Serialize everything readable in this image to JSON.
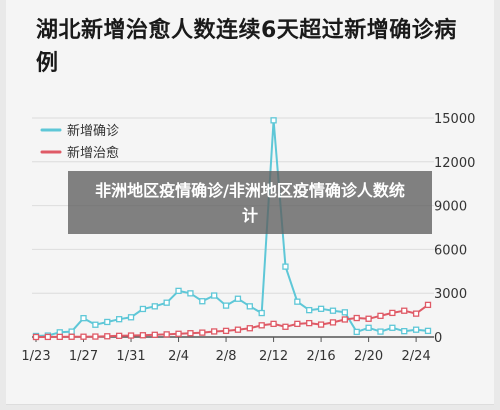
{
  "overlay_text": "非洲地区疫情确诊/非洲地区疫情确诊人数统计",
  "colors": {
    "confirmed": "#5ec7d7",
    "cured": "#df5a66",
    "grid": "#dcdcdc",
    "axis": "#555555"
  },
  "chart_data": {
    "type": "line",
    "title": "湖北新增治愈人数连续6天超过新增确诊病例",
    "xlabel": "",
    "ylabel": "",
    "x": [
      "1/23",
      "1/24",
      "1/25",
      "1/26",
      "1/27",
      "1/28",
      "1/29",
      "1/30",
      "1/31",
      "2/1",
      "2/2",
      "2/3",
      "2/4",
      "2/5",
      "2/6",
      "2/7",
      "2/8",
      "2/9",
      "2/10",
      "2/11",
      "2/12",
      "2/13",
      "2/14",
      "2/15",
      "2/16",
      "2/17",
      "2/18",
      "2/19",
      "2/20",
      "2/21",
      "2/22",
      "2/23",
      "2/24",
      "2/25"
    ],
    "xticks": [
      "1/23",
      "1/27",
      "1/31",
      "2/4",
      "2/8",
      "2/12",
      "2/16",
      "2/20",
      "2/24"
    ],
    "yticks": [
      0,
      3000,
      6000,
      9000,
      12000,
      15000
    ],
    "ylim": [
      0,
      15000
    ],
    "legend_position": "top-left",
    "grid": true,
    "series": [
      {
        "name": "新增确诊",
        "color": "#5ec7d7",
        "values": [
          70,
          100,
          320,
          370,
          1290,
          840,
          1030,
          1220,
          1350,
          1920,
          2100,
          2350,
          3160,
          2990,
          2450,
          2840,
          2150,
          2620,
          2100,
          1640,
          14840,
          4820,
          2420,
          1840,
          1930,
          1800,
          1690,
          350,
          630,
          370,
          630,
          400,
          500,
          420
        ]
      },
      {
        "name": "新增治愈",
        "color": "#df5a66",
        "values": [
          0,
          5,
          10,
          15,
          20,
          30,
          50,
          80,
          100,
          120,
          150,
          180,
          220,
          260,
          300,
          380,
          420,
          500,
          600,
          800,
          900,
          700,
          900,
          950,
          850,
          1000,
          1200,
          1300,
          1250,
          1450,
          1650,
          1800,
          1600,
          2200
        ]
      }
    ]
  }
}
